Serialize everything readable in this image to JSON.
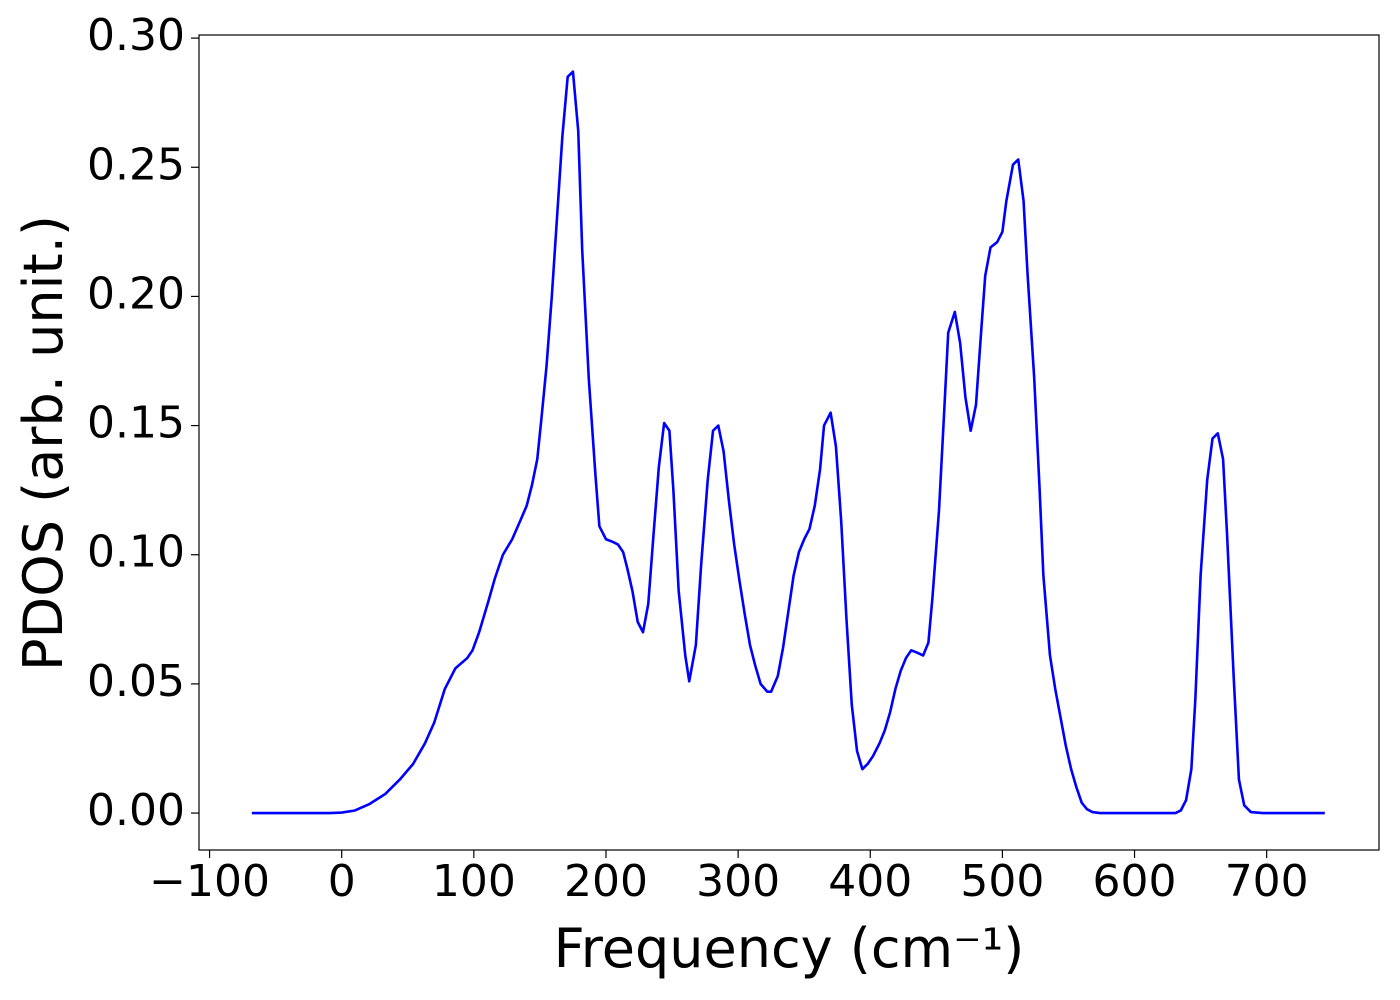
{
  "chart_data": {
    "type": "line",
    "xlabel": "Frequency (cm⁻¹)",
    "ylabel": "PDOS (arb. unit.)",
    "xlim": [
      -108,
      785
    ],
    "ylim": [
      -0.0143,
      0.3012
    ],
    "xticks": [
      {
        "value": -100,
        "label": "−100"
      },
      0,
      100,
      200,
      300,
      400,
      500,
      600,
      700
    ],
    "yticks": [
      {
        "value": 0,
        "label": "0.00"
      },
      0.05,
      {
        "value": 0.1,
        "label": "0.10"
      },
      0.15,
      {
        "value": 0.2,
        "label": "0.20"
      },
      0.25,
      {
        "value": 0.3,
        "label": "0.30"
      }
    ],
    "grid": false,
    "series": [
      {
        "color": "#0000ff",
        "x": [
          -68,
          -9,
          0,
          10,
          21,
          33,
          44,
          54,
          63,
          70,
          78,
          86,
          95,
          99,
          104,
          111,
          116,
          122,
          129,
          135,
          140,
          144,
          148,
          151,
          155,
          159,
          163,
          167,
          171,
          175,
          179,
          182,
          187,
          192,
          195,
          200,
          205,
          209,
          213,
          216,
          220,
          224,
          228,
          232,
          236,
          240,
          244,
          248,
          251,
          255,
          260,
          263,
          268,
          272,
          277,
          281,
          285,
          289,
          293,
          297,
          301,
          305,
          309,
          313,
          317,
          322,
          325,
          330,
          334,
          338,
          342,
          346,
          350,
          354,
          358,
          362,
          365,
          370,
          374,
          378,
          382,
          386,
          390,
          394,
          398,
          402,
          407,
          411,
          415,
          419,
          423,
          427,
          431,
          436,
          440,
          444,
          447,
          452,
          456,
          459,
          464,
          468,
          472,
          476,
          480,
          484,
          487,
          491,
          496,
          500,
          503,
          508,
          512,
          516,
          519,
          524,
          528,
          531,
          536,
          540,
          544,
          548,
          552,
          556,
          560,
          564,
          568,
          574,
          631,
          635,
          639,
          643,
          646,
          650,
          655,
          659,
          663,
          667,
          670,
          675,
          679,
          683,
          688,
          697,
          744
        ],
        "values": [
          0,
          0,
          0.0002,
          0.001,
          0.0035,
          0.0074,
          0.013,
          0.019,
          0.027,
          0.035,
          0.048,
          0.056,
          0.06,
          0.063,
          0.07,
          0.082,
          0.091,
          0.1,
          0.106,
          0.113,
          0.119,
          0.127,
          0.137,
          0.152,
          0.173,
          0.2,
          0.231,
          0.262,
          0.285,
          0.287,
          0.264,
          0.218,
          0.168,
          0.131,
          0.111,
          0.106,
          0.105,
          0.104,
          0.101,
          0.095,
          0.086,
          0.074,
          0.07,
          0.081,
          0.108,
          0.134,
          0.151,
          0.148,
          0.125,
          0.086,
          0.061,
          0.051,
          0.065,
          0.096,
          0.129,
          0.148,
          0.15,
          0.14,
          0.121,
          0.104,
          0.09,
          0.077,
          0.065,
          0.057,
          0.05,
          0.047,
          0.047,
          0.053,
          0.064,
          0.078,
          0.092,
          0.101,
          0.106,
          0.11,
          0.119,
          0.133,
          0.15,
          0.155,
          0.142,
          0.113,
          0.075,
          0.042,
          0.024,
          0.017,
          0.019,
          0.022,
          0.027,
          0.032,
          0.039,
          0.048,
          0.055,
          0.06,
          0.063,
          0.062,
          0.061,
          0.066,
          0.083,
          0.117,
          0.156,
          0.186,
          0.194,
          0.182,
          0.161,
          0.148,
          0.158,
          0.187,
          0.208,
          0.219,
          0.221,
          0.225,
          0.237,
          0.251,
          0.253,
          0.237,
          0.209,
          0.169,
          0.127,
          0.092,
          0.061,
          0.048,
          0.037,
          0.026,
          0.017,
          0.01,
          0.004,
          0.0015,
          0.0004,
          0,
          0,
          0.001,
          0.005,
          0.017,
          0.044,
          0.092,
          0.129,
          0.145,
          0.147,
          0.137,
          0.108,
          0.053,
          0.013,
          0.003,
          0.0004,
          0,
          0
        ]
      }
    ]
  }
}
